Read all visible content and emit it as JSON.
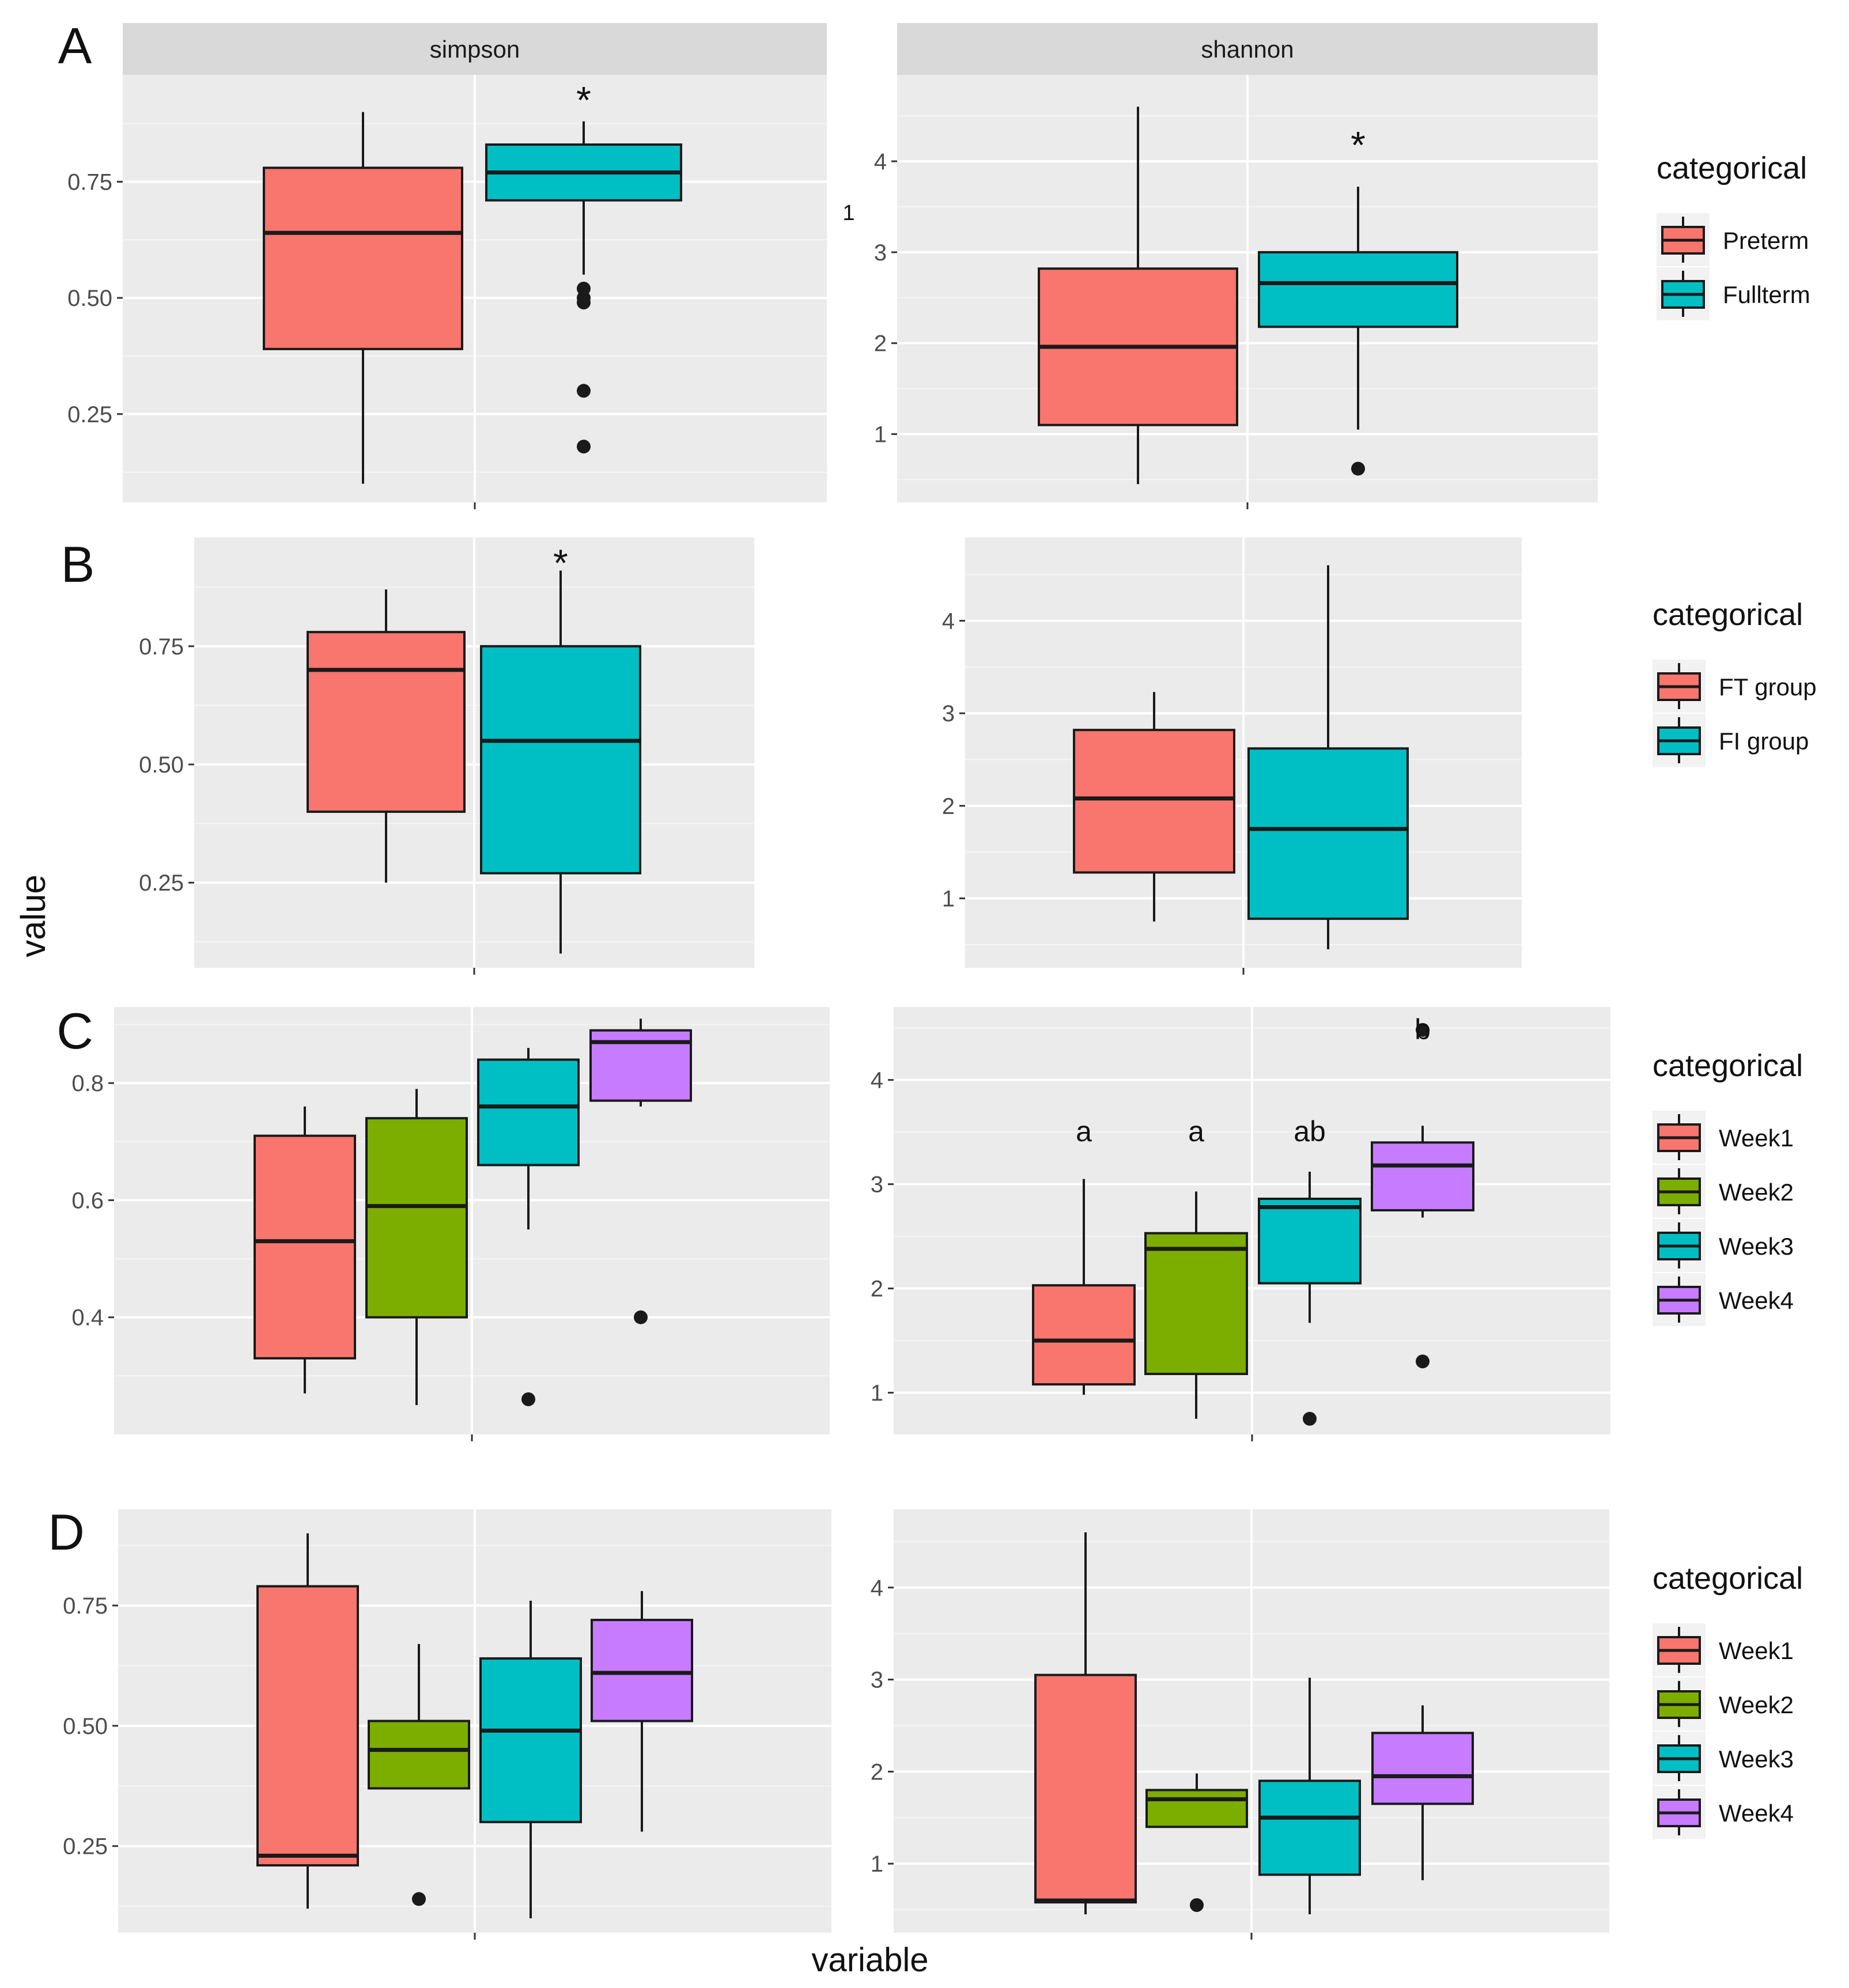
{
  "figure": {
    "ylabel": "value",
    "xlabel": "variable",
    "stray_label": "1",
    "colors": {
      "Preterm": "#F8766D",
      "Fullterm": "#00BFC4",
      "FT group": "#F8766D",
      "FI group": "#00BFC4",
      "Week1": "#F8766D",
      "Week2": "#7CAE00",
      "Week3": "#00BFC4",
      "Week4": "#C77CFF",
      "panel_bg": "#EBEBEB",
      "strip_bg": "#D9D9D9"
    }
  },
  "chart_data": [
    {
      "id": "A-simpson",
      "row": "A",
      "type": "boxplot",
      "strip": "simpson",
      "xlabel": "",
      "ylabel": "value",
      "ylim": [
        0.06,
        0.98
      ],
      "ticks": [
        0.25,
        0.5,
        0.75
      ],
      "tick_labels": [
        "0.25",
        "0.50",
        "0.75"
      ],
      "boxes": [
        {
          "group": "Preterm",
          "whisker_low": 0.1,
          "q1": 0.39,
          "median": 0.64,
          "q3": 0.78,
          "whisker_high": 0.9,
          "outliers": []
        },
        {
          "group": "Fullterm",
          "whisker_low": 0.55,
          "q1": 0.71,
          "median": 0.77,
          "q3": 0.83,
          "whisker_high": 0.88,
          "outliers": [
            0.52,
            0.5,
            0.49,
            0.3,
            0.18
          ]
        }
      ],
      "annotations": [
        {
          "text": "*",
          "group": "Fullterm",
          "y": 0.94
        }
      ]
    },
    {
      "id": "A-shannon",
      "row": "A",
      "type": "boxplot",
      "strip": "shannon",
      "xlabel": "",
      "ylabel": "value",
      "ylim": [
        0.25,
        4.95
      ],
      "ticks": [
        1,
        2,
        3,
        4
      ],
      "tick_labels": [
        "1",
        "2",
        "3",
        "4"
      ],
      "boxes": [
        {
          "group": "Preterm",
          "whisker_low": 0.45,
          "q1": 1.1,
          "median": 1.96,
          "q3": 2.82,
          "whisker_high": 4.6,
          "outliers": []
        },
        {
          "group": "Fullterm",
          "whisker_low": 1.05,
          "q1": 2.18,
          "median": 2.66,
          "q3": 3.0,
          "whisker_high": 3.72,
          "outliers": [
            0.62
          ]
        }
      ],
      "annotations": [
        {
          "text": "*",
          "group": "Fullterm",
          "y": 4.25
        }
      ]
    },
    {
      "id": "B-simpson",
      "row": "B",
      "type": "boxplot",
      "strip": "",
      "xlabel": "",
      "ylabel": "value",
      "ylim": [
        0.07,
        0.98
      ],
      "ticks": [
        0.25,
        0.5,
        0.75
      ],
      "tick_labels": [
        "0.25",
        "0.50",
        "0.75"
      ],
      "boxes": [
        {
          "group": "FT group",
          "whisker_low": 0.25,
          "q1": 0.4,
          "median": 0.7,
          "q3": 0.78,
          "whisker_high": 0.87,
          "outliers": []
        },
        {
          "group": "FI group",
          "whisker_low": 0.1,
          "q1": 0.27,
          "median": 0.55,
          "q3": 0.75,
          "whisker_high": 0.91,
          "outliers": []
        }
      ],
      "annotations": [
        {
          "text": "*",
          "group": "FI group",
          "y": 0.94
        }
      ]
    },
    {
      "id": "B-shannon",
      "row": "B",
      "type": "boxplot",
      "strip": "",
      "xlabel": "",
      "ylabel": "value",
      "ylim": [
        0.25,
        4.9
      ],
      "ticks": [
        1,
        2,
        3,
        4
      ],
      "tick_labels": [
        "1",
        "2",
        "3",
        "4"
      ],
      "boxes": [
        {
          "group": "FT group",
          "whisker_low": 0.75,
          "q1": 1.28,
          "median": 2.08,
          "q3": 2.82,
          "whisker_high": 3.23,
          "outliers": []
        },
        {
          "group": "FI group",
          "whisker_low": 0.45,
          "q1": 0.78,
          "median": 1.75,
          "q3": 2.62,
          "whisker_high": 4.6,
          "outliers": []
        }
      ],
      "annotations": []
    },
    {
      "id": "C-simpson",
      "row": "C",
      "type": "boxplot",
      "strip": "",
      "xlabel": "",
      "ylabel": "value",
      "ylim": [
        0.2,
        0.93
      ],
      "ticks": [
        0.4,
        0.6,
        0.8
      ],
      "tick_labels": [
        "0.4",
        "0.6",
        "0.8"
      ],
      "boxes": [
        {
          "group": "Week1",
          "whisker_low": 0.27,
          "q1": 0.33,
          "median": 0.53,
          "q3": 0.71,
          "whisker_high": 0.76,
          "outliers": []
        },
        {
          "group": "Week2",
          "whisker_low": 0.25,
          "q1": 0.4,
          "median": 0.59,
          "q3": 0.74,
          "whisker_high": 0.79,
          "outliers": []
        },
        {
          "group": "Week3",
          "whisker_low": 0.55,
          "q1": 0.66,
          "median": 0.76,
          "q3": 0.84,
          "whisker_high": 0.86,
          "outliers": [
            0.26
          ]
        },
        {
          "group": "Week4",
          "whisker_low": 0.76,
          "q1": 0.77,
          "median": 0.87,
          "q3": 0.89,
          "whisker_high": 0.91,
          "outliers": [
            0.4
          ]
        }
      ],
      "annotations": []
    },
    {
      "id": "C-shannon",
      "row": "C",
      "type": "boxplot",
      "strip": "",
      "xlabel": "",
      "ylabel": "value",
      "ylim": [
        0.6,
        4.7
      ],
      "ticks": [
        1,
        2,
        3,
        4
      ],
      "tick_labels": [
        "1",
        "2",
        "3",
        "4"
      ],
      "boxes": [
        {
          "group": "Week1",
          "whisker_low": 0.98,
          "q1": 1.08,
          "median": 1.5,
          "q3": 2.03,
          "whisker_high": 3.05,
          "outliers": []
        },
        {
          "group": "Week2",
          "whisker_low": 0.75,
          "q1": 1.18,
          "median": 2.38,
          "q3": 2.53,
          "whisker_high": 2.93,
          "outliers": []
        },
        {
          "group": "Week3",
          "whisker_low": 1.67,
          "q1": 2.05,
          "median": 2.78,
          "q3": 2.86,
          "whisker_high": 3.12,
          "outliers": [
            0.75
          ]
        },
        {
          "group": "Week4",
          "whisker_low": 2.68,
          "q1": 2.75,
          "median": 3.18,
          "q3": 3.4,
          "whisker_high": 3.56,
          "outliers": [
            4.48,
            1.3
          ]
        }
      ],
      "annotations": [
        {
          "text": "a",
          "group": "Week1",
          "y": 3.5
        },
        {
          "text": "a",
          "group": "Week2",
          "y": 3.5
        },
        {
          "text": "ab",
          "group": "Week3",
          "y": 3.5
        },
        {
          "text": "b",
          "group": "Week4",
          "y": 4.48
        }
      ]
    },
    {
      "id": "D-simpson",
      "row": "D",
      "type": "boxplot",
      "strip": "",
      "xlabel": "variable",
      "ylabel": "value",
      "ylim": [
        0.07,
        0.95
      ],
      "ticks": [
        0.25,
        0.5,
        0.75
      ],
      "tick_labels": [
        "0.25",
        "0.50",
        "0.75"
      ],
      "boxes": [
        {
          "group": "Week1",
          "whisker_low": 0.12,
          "q1": 0.21,
          "median": 0.23,
          "q3": 0.79,
          "whisker_high": 0.9,
          "outliers": []
        },
        {
          "group": "Week2",
          "whisker_low": 0.37,
          "q1": 0.37,
          "median": 0.45,
          "q3": 0.51,
          "whisker_high": 0.67,
          "outliers": [
            0.14
          ]
        },
        {
          "group": "Week3",
          "whisker_low": 0.1,
          "q1": 0.3,
          "median": 0.49,
          "q3": 0.64,
          "whisker_high": 0.76,
          "outliers": []
        },
        {
          "group": "Week4",
          "whisker_low": 0.28,
          "q1": 0.51,
          "median": 0.61,
          "q3": 0.72,
          "whisker_high": 0.78,
          "outliers": []
        }
      ],
      "annotations": []
    },
    {
      "id": "D-shannon",
      "row": "D",
      "type": "boxplot",
      "strip": "",
      "xlabel": "variable",
      "ylabel": "value",
      "ylim": [
        0.25,
        4.85
      ],
      "ticks": [
        1,
        2,
        3,
        4
      ],
      "tick_labels": [
        "1",
        "2",
        "3",
        "4"
      ],
      "boxes": [
        {
          "group": "Week1",
          "whisker_low": 0.45,
          "q1": 0.58,
          "median": 0.6,
          "q3": 3.05,
          "whisker_high": 4.6,
          "outliers": []
        },
        {
          "group": "Week2",
          "whisker_low": 1.4,
          "q1": 1.4,
          "median": 1.7,
          "q3": 1.8,
          "whisker_high": 1.98,
          "outliers": [
            0.55
          ]
        },
        {
          "group": "Week3",
          "whisker_low": 0.45,
          "q1": 0.88,
          "median": 1.5,
          "q3": 1.9,
          "whisker_high": 3.02,
          "outliers": []
        },
        {
          "group": "Week4",
          "whisker_low": 0.82,
          "q1": 1.65,
          "median": 1.95,
          "q3": 2.42,
          "whisker_high": 2.72,
          "outliers": []
        }
      ],
      "annotations": []
    }
  ],
  "panel_labels": [
    {
      "row": "A",
      "text": "A"
    },
    {
      "row": "B",
      "text": "B"
    },
    {
      "row": "C",
      "text": "C"
    },
    {
      "row": "D",
      "text": "D"
    }
  ],
  "legends": [
    {
      "row": "A",
      "title": "categorical",
      "items": [
        "Preterm",
        "Fullterm"
      ]
    },
    {
      "row": "B",
      "title": "categorical",
      "items": [
        "FT group",
        "FI group"
      ]
    },
    {
      "row": "C",
      "title": "categorical",
      "items": [
        "Week1",
        "Week2",
        "Week3",
        "Week4"
      ]
    },
    {
      "row": "D",
      "title": "categorical",
      "items": [
        "Week1",
        "Week2",
        "Week3",
        "Week4"
      ]
    }
  ]
}
